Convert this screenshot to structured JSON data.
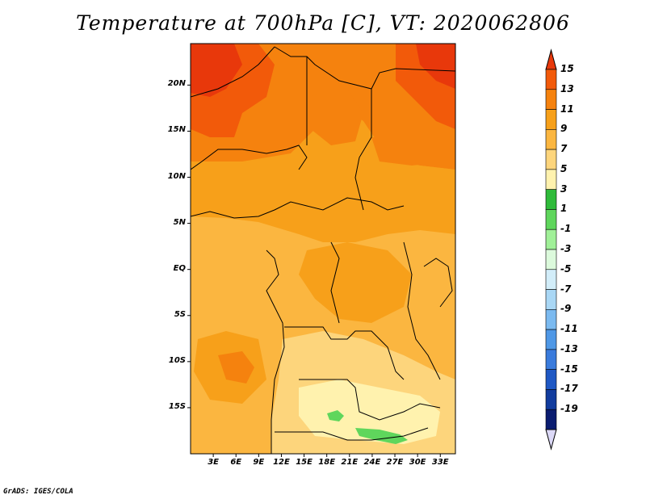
{
  "title": "Temperature at 700hPa [C], VT: 2020062806",
  "footer": "GrADS: IGES/COLA",
  "map": {
    "lon_range": [
      0,
      35
    ],
    "lat_range": [
      -20,
      24.5
    ],
    "lat_ticks": [
      {
        "value": 20,
        "label": "20N"
      },
      {
        "value": 15,
        "label": "15N"
      },
      {
        "value": 10,
        "label": "10N"
      },
      {
        "value": 5,
        "label": "5N"
      },
      {
        "value": 0,
        "label": "EQ"
      },
      {
        "value": -5,
        "label": "5S"
      },
      {
        "value": -10,
        "label": "10S"
      },
      {
        "value": -15,
        "label": "15S"
      }
    ],
    "lon_ticks": [
      {
        "value": 3,
        "label": "3E"
      },
      {
        "value": 6,
        "label": "6E"
      },
      {
        "value": 9,
        "label": "9E"
      },
      {
        "value": 12,
        "label": "12E"
      },
      {
        "value": 15,
        "label": "15E"
      },
      {
        "value": 18,
        "label": "18E"
      },
      {
        "value": 21,
        "label": "21E"
      },
      {
        "value": 24,
        "label": "24E"
      },
      {
        "value": 27,
        "label": "27E"
      },
      {
        "value": 30,
        "label": "30E"
      },
      {
        "value": 33,
        "label": "33E"
      }
    ]
  },
  "colorbar": {
    "labels": [
      "15",
      "13",
      "11",
      "9",
      "7",
      "5",
      "3",
      "1",
      "-1",
      "-3",
      "-5",
      "-7",
      "-9",
      "-11",
      "-13",
      "-15",
      "-17",
      "-19"
    ],
    "colors": [
      "#e8380b",
      "#f25a0a",
      "#f5820e",
      "#f7a01a",
      "#fbb640",
      "#fdd57c",
      "#fff2ae",
      "#2fbb3a",
      "#5fd65c",
      "#a0f098",
      "#dcfadc",
      "#d2edf9",
      "#a9d7f5",
      "#7bbaf0",
      "#4f98e6",
      "#3a7bdc",
      "#1f58c4",
      "#123c9e",
      "#0a1c70",
      "#dcd9f7"
    ]
  }
}
